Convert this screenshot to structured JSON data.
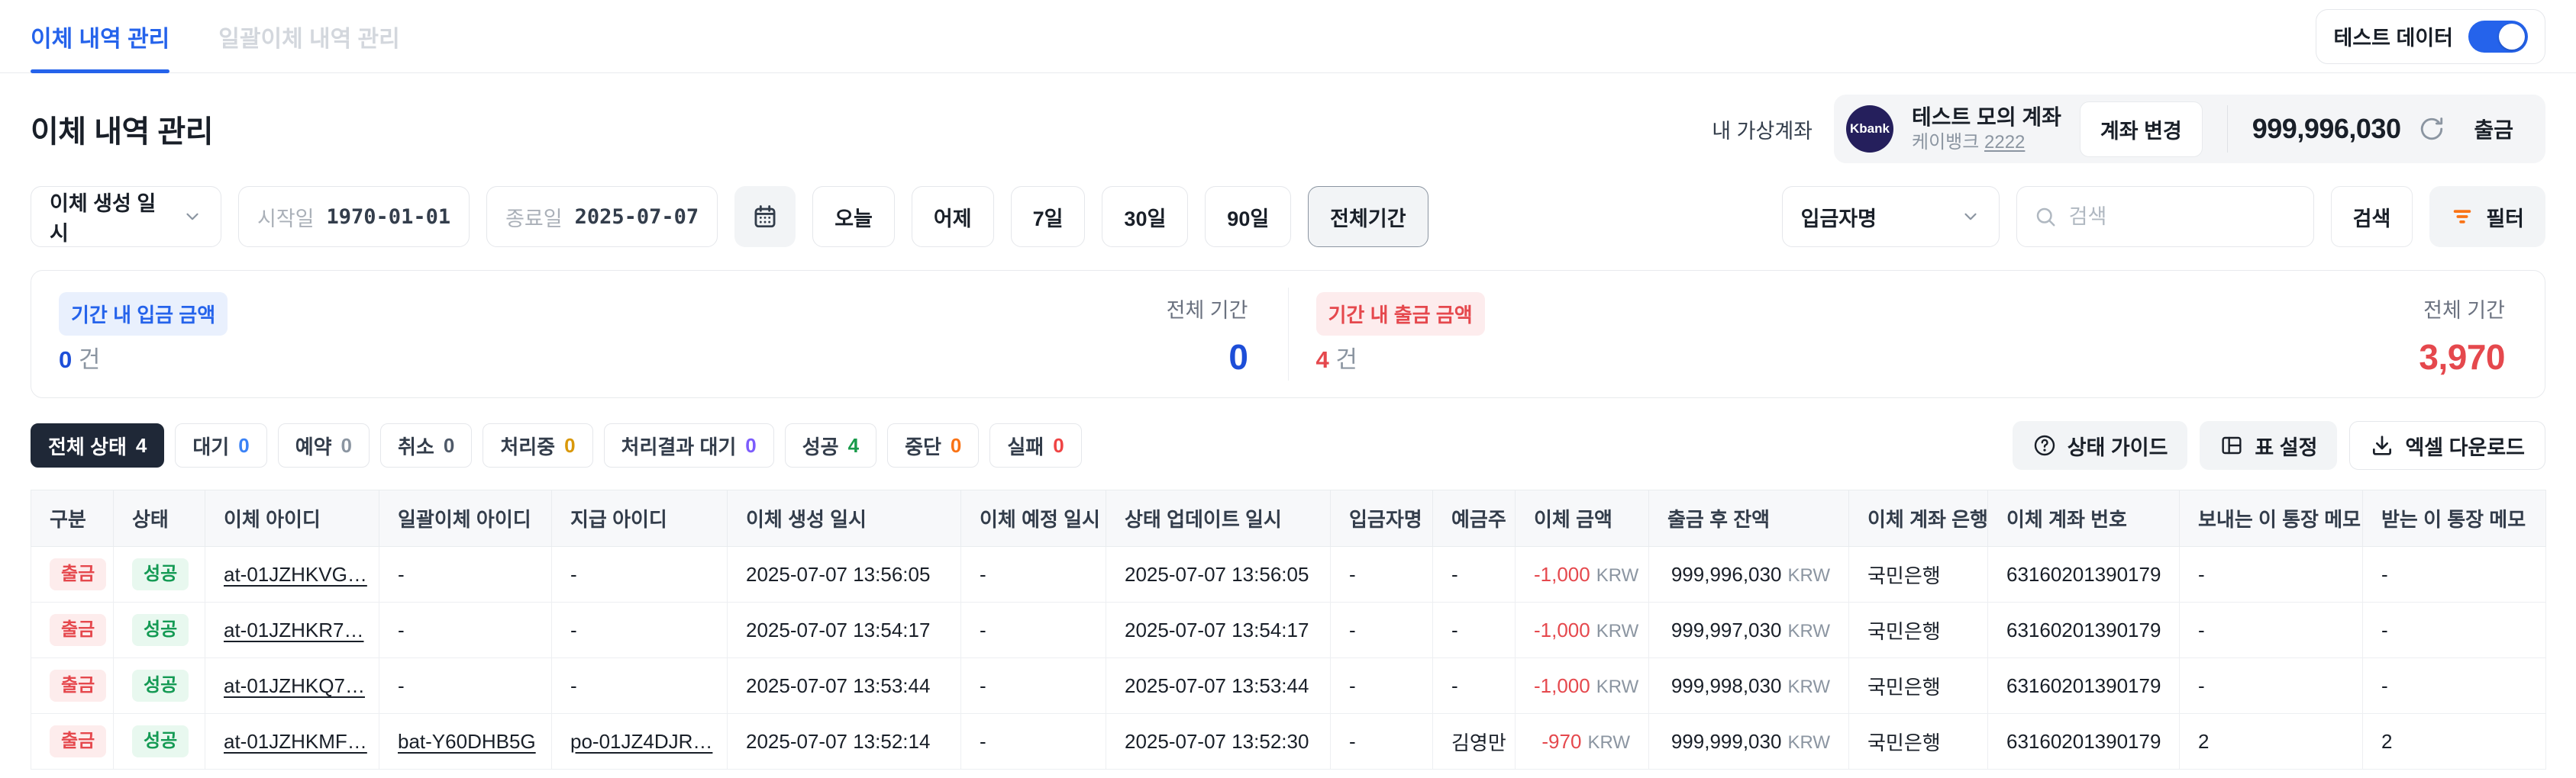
{
  "tabs": [
    {
      "label": "이체 내역 관리",
      "active": true
    },
    {
      "label": "일괄이체 내역 관리",
      "active": false
    }
  ],
  "toggle": {
    "label": "테스트 데이터",
    "state": "on"
  },
  "page_title": "이체 내역 관리",
  "account": {
    "label": "내 가상계좌",
    "bank_logo_text": "Kbank",
    "name": "테스트 모의 계좌",
    "bank": "케이뱅크",
    "number_suffix": "2222",
    "change_btn": "계좌 변경",
    "balance": "999,996,030",
    "withdraw_btn": "출금"
  },
  "filters": {
    "type_select": "이체 생성 일시",
    "start_label": "시작일",
    "start_value": "1970-01-01",
    "end_label": "종료일",
    "end_value": "2025-07-07",
    "quick": [
      "오늘",
      "어제",
      "7일",
      "30일",
      "90일",
      "전체기간"
    ],
    "quick_selected": "전체기간",
    "search_field_select": "입금자명",
    "search_placeholder": "검색",
    "search_btn": "검색",
    "filter_btn": "필터"
  },
  "summary": {
    "deposit": {
      "badge": "기간 내 입금 금액",
      "count": "0",
      "count_unit": "건",
      "period_label": "전체 기간",
      "total": "0"
    },
    "withdrawal": {
      "badge": "기간 내 출금 금액",
      "count": "4",
      "count_unit": "건",
      "period_label": "전체 기간",
      "total": "3,970"
    }
  },
  "status_chips": [
    {
      "label": "전체 상태",
      "count": "4",
      "active": true,
      "count_color": "#ffffff"
    },
    {
      "label": "대기",
      "count": "0",
      "count_color": "#3b82f6"
    },
    {
      "label": "예약",
      "count": "0",
      "count_color": "#8b95a1"
    },
    {
      "label": "취소",
      "count": "0",
      "count_color": "#4e5968"
    },
    {
      "label": "처리중",
      "count": "0",
      "count_color": "#d9980a"
    },
    {
      "label": "처리결과 대기",
      "count": "0",
      "count_color": "#7c5cfc"
    },
    {
      "label": "성공",
      "count": "4",
      "count_color": "#189a4a"
    },
    {
      "label": "중단",
      "count": "0",
      "count_color": "#f97316"
    },
    {
      "label": "실패",
      "count": "0",
      "count_color": "#ef4444"
    }
  ],
  "table_actions": [
    {
      "label": "상태 가이드"
    },
    {
      "label": "표 설정"
    },
    {
      "label": "엑셀 다운로드"
    }
  ],
  "table": {
    "columns": [
      "구분",
      "상태",
      "이체 아이디",
      "일괄이체 아이디",
      "지급 아이디",
      "이체 생성 일시",
      "이체 예정 일시",
      "상태 업데이트 일시",
      "입금자명",
      "예금주",
      "이체 금액",
      "출금 후 잔액",
      "이체 계좌 은행",
      "이체 계좌 번호",
      "보내는 이 통장 메모",
      "받는 이 통장 메모"
    ],
    "rows": [
      {
        "category": "출금",
        "status": "성공",
        "transfer_id": "at-01JZHKVG…",
        "batch_id": "-",
        "payout_id": "-",
        "created_at": "2025-07-07 13:56:05",
        "scheduled_at": "-",
        "updated_at": "2025-07-07 13:56:05",
        "depositor": "-",
        "holder": "-",
        "amount": "-1,000",
        "currency": "KRW",
        "balance": "999,996,030",
        "bank": "국민은행",
        "account_no": "63160201390179",
        "sender_memo": "-",
        "receiver_memo": "-"
      },
      {
        "category": "출금",
        "status": "성공",
        "transfer_id": "at-01JZHKR7…",
        "batch_id": "-",
        "payout_id": "-",
        "created_at": "2025-07-07 13:54:17",
        "scheduled_at": "-",
        "updated_at": "2025-07-07 13:54:17",
        "depositor": "-",
        "holder": "-",
        "amount": "-1,000",
        "currency": "KRW",
        "balance": "999,997,030",
        "bank": "국민은행",
        "account_no": "63160201390179",
        "sender_memo": "-",
        "receiver_memo": "-"
      },
      {
        "category": "출금",
        "status": "성공",
        "transfer_id": "at-01JZHKQ7…",
        "batch_id": "-",
        "payout_id": "-",
        "created_at": "2025-07-07 13:53:44",
        "scheduled_at": "-",
        "updated_at": "2025-07-07 13:53:44",
        "depositor": "-",
        "holder": "-",
        "amount": "-1,000",
        "currency": "KRW",
        "balance": "999,998,030",
        "bank": "국민은행",
        "account_no": "63160201390179",
        "sender_memo": "-",
        "receiver_memo": "-"
      },
      {
        "category": "출금",
        "status": "성공",
        "transfer_id": "at-01JZHKMF…",
        "batch_id": "bat-Y60DHB5G",
        "payout_id": "po-01JZ4DJR…",
        "created_at": "2025-07-07 13:52:14",
        "scheduled_at": "-",
        "updated_at": "2025-07-07 13:52:30",
        "depositor": "-",
        "holder": "김영만",
        "amount": "-970",
        "currency": "KRW",
        "balance": "999,999,030",
        "bank": "국민은행",
        "account_no": "63160201390179",
        "sender_memo": "2",
        "receiver_memo": "2"
      }
    ]
  },
  "colors": {
    "accent_blue": "#2563eb",
    "red": "#e5484d",
    "green": "#149a54",
    "orange": "#f97316",
    "chip_dark": "#1f2837",
    "kbank_navy": "#251f5c"
  }
}
